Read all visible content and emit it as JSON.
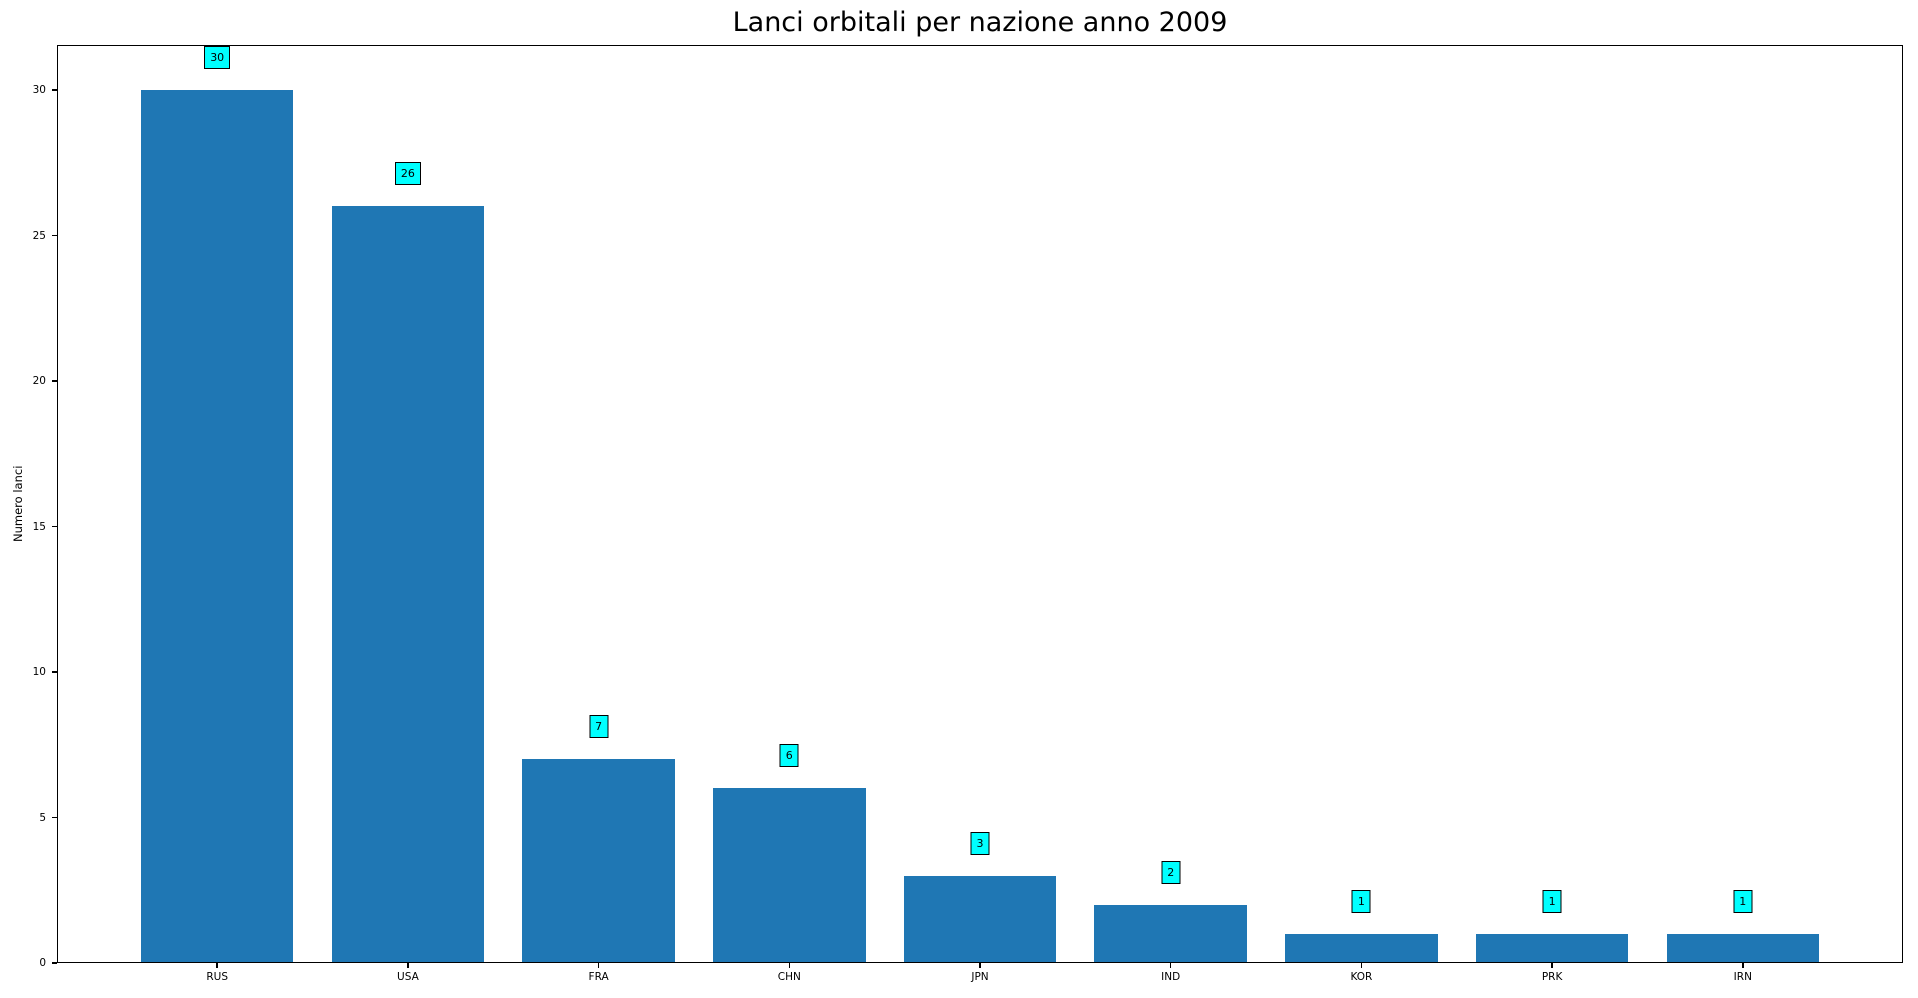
{
  "chart_data": {
    "type": "bar",
    "title": "Lanci orbitali per nazione anno 2009",
    "xlabel": "",
    "ylabel": "Numero lanci",
    "categories": [
      "RUS",
      "USA",
      "FRA",
      "CHN",
      "JPN",
      "IND",
      "KOR",
      "PRK",
      "IRN"
    ],
    "values": [
      30,
      26,
      7,
      6,
      3,
      2,
      1,
      1,
      1
    ],
    "bar_labels": [
      "30",
      "26",
      "7",
      "6",
      "3",
      "2",
      "1",
      "1",
      "1"
    ],
    "yticks": [
      0,
      5,
      10,
      15,
      20,
      25,
      30
    ],
    "ylim": [
      0,
      31.55
    ],
    "xlim": [
      -0.84,
      8.84
    ],
    "bar_width": 0.8,
    "grid": false,
    "legend_position": "none",
    "colors": {
      "bar": "#1f77b4",
      "annotation_bg": "#00ffff",
      "annotation_border": "#000000",
      "text": "#000000",
      "spine": "#000000",
      "background": "#ffffff"
    }
  }
}
